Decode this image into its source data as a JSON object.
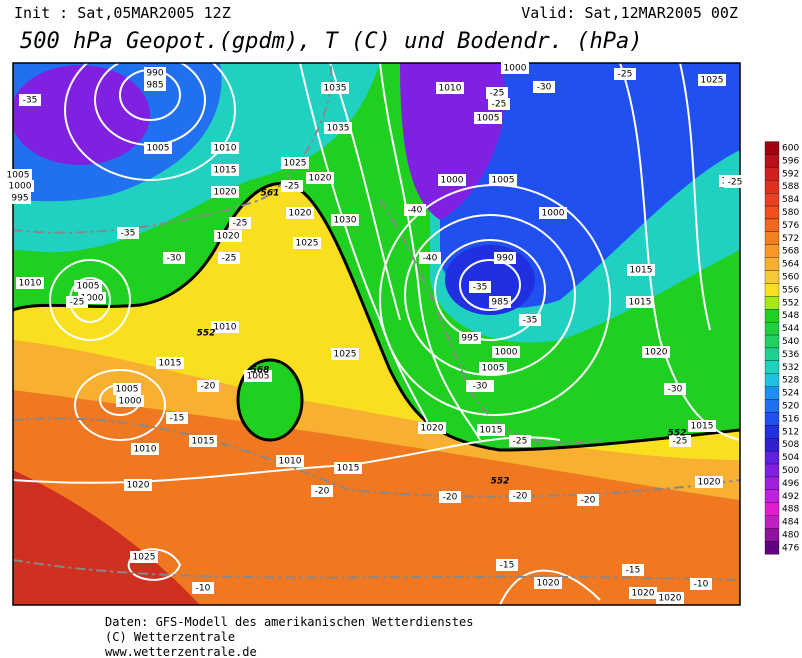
{
  "header": {
    "init": "Init : Sat,05MAR2005 12Z",
    "valid": "Valid: Sat,12MAR2005 00Z",
    "title": "500 hPa Geopot.(gpdm), T (C) und Bodendr. (hPa)"
  },
  "map": {
    "isobar_labels": [
      990,
      985,
      1005,
      1010,
      1015,
      1020,
      1020,
      1025,
      1020,
      1035,
      1035,
      1020,
      1030,
      1025,
      1010,
      1005,
      1000,
      1000,
      1005,
      1000,
      990,
      985,
      995,
      1000,
      1005,
      1010,
      1015,
      1015,
      1015,
      1020,
      1025,
      1005,
      1000,
      1010,
      1010,
      1015,
      1005,
      1000,
      1010,
      1015,
      1005,
      1020,
      1010,
      1015,
      1020,
      1025,
      1025,
      1020,
      1020,
      1020,
      1020,
      1015,
      995,
      1000,
      1005,
      102
    ],
    "temperature_labels": [
      -35,
      -25,
      -25,
      -25,
      -30,
      -35,
      -25,
      -20,
      -15,
      -20,
      -10,
      -25,
      -25,
      -30,
      -25,
      -40,
      -40,
      -35,
      -35,
      -30,
      -25,
      -20,
      -20,
      -20,
      -15,
      -15,
      -10,
      -30,
      -25,
      -25
    ],
    "height_labels": [
      552,
      552,
      552,
      561,
      568
    ]
  },
  "colorbar": {
    "ticks": [
      600,
      596,
      592,
      588,
      584,
      580,
      576,
      572,
      568,
      564,
      560,
      556,
      552,
      548,
      544,
      540,
      536,
      532,
      528,
      524,
      520,
      516,
      512,
      508,
      504,
      500,
      496,
      492,
      488,
      484,
      480,
      476
    ],
    "colors": [
      "#a00010",
      "#b81018",
      "#d02020",
      "#e03020",
      "#e84020",
      "#f05020",
      "#f06820",
      "#f08020",
      "#f89828",
      "#f8b030",
      "#f8c838",
      "#f8e020",
      "#a8e818",
      "#20d020",
      "#20d040",
      "#20d060",
      "#20d090",
      "#20d0c0",
      "#20c0e0",
      "#2090f0",
      "#2070f0",
      "#2050f0",
      "#2030e0",
      "#3020d0",
      "#6020e0",
      "#8020e0",
      "#a020e0",
      "#c020e0",
      "#e020d0",
      "#c020c0",
      "#9010a0",
      "#600080"
    ]
  },
  "footer": {
    "line1": "Daten: GFS-Modell des amerikanischen Wetterdienstes",
    "line2": "(C) Wetterzentrale",
    "line3": "www.wetterzentrale.de"
  }
}
